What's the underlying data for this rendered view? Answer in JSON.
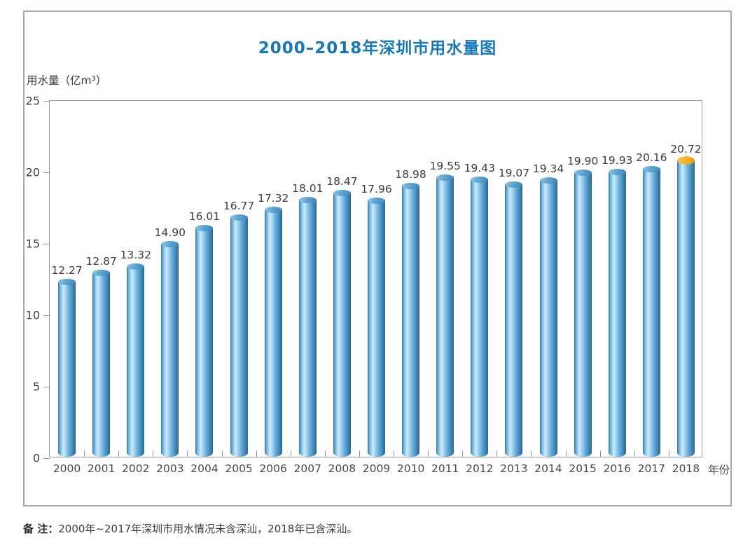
{
  "header": {
    "title": "2000–2018年深圳市用水量图"
  },
  "axes": {
    "y_label": "用水量（亿m³）",
    "x_label": "年份"
  },
  "note": {
    "label": "备 注：",
    "text": "2000年~2017年深圳市用水情况未含深汕，2018年已含深汕。"
  },
  "colors": {
    "title_blue": "#1878b6",
    "axis_gray": "#9a9a9a",
    "bar_blue_main": "#5aa7d8",
    "bar_blue_highlight": "#cdeafa",
    "bar_blue_edge": "#2b6590",
    "cap_blue": "#4f9fd0",
    "cap_orange_2018": "#f2b32c",
    "value_label": "#3d3d3d"
  },
  "chart_data": {
    "type": "bar",
    "title": "2000–2018年深圳市用水量图",
    "categories": [
      "2000",
      "2001",
      "2002",
      "2003",
      "2004",
      "2005",
      "2006",
      "2007",
      "2008",
      "2009",
      "2010",
      "2011",
      "2012",
      "2013",
      "2014",
      "2015",
      "2016",
      "2017",
      "2018"
    ],
    "values": [
      12.27,
      12.87,
      13.32,
      14.9,
      16.01,
      16.77,
      17.32,
      18.01,
      18.47,
      17.96,
      18.98,
      19.55,
      19.43,
      19.07,
      19.34,
      19.9,
      19.93,
      20.16,
      20.72
    ],
    "value_label_decimals": 2,
    "xlabel": "年份",
    "ylabel": "用水量（亿m³）",
    "ylim": [
      0,
      25
    ],
    "yticks": [
      0,
      5,
      10,
      15,
      20,
      25
    ],
    "grid": false,
    "legend": null,
    "bar_style": "3d-cylinder",
    "highlight": {
      "category": "2018",
      "cap_color": "#f2b32c"
    },
    "footnote": "备 注：2000年~2017年深圳市用水情况未含深汕，2018年已含深汕。"
  }
}
